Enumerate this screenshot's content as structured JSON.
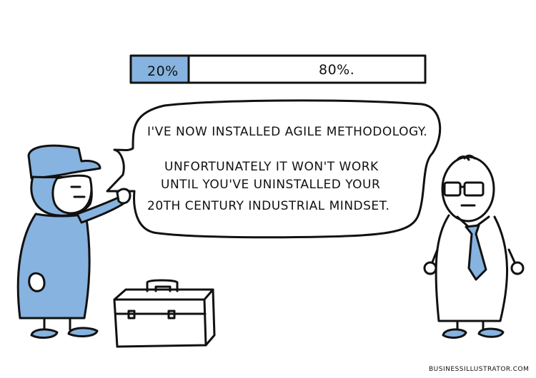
{
  "progress": {
    "left_label": "20%",
    "right_label": "80%.",
    "fill_percent": 20,
    "fill_color": "#86b3e0"
  },
  "speech": {
    "line1": "I'VE NOW INSTALLED AGILE METHODOLOGY.",
    "line2": "UNFORTUNATELY IT WON'T WORK",
    "line3": "UNTIL YOU'VE UNINSTALLED YOUR",
    "line4": "20TH CENTURY INDUSTRIAL MINDSET."
  },
  "credit": "BUSINESSILLUSTRATOR.COM",
  "colors": {
    "accent": "#86b3e0",
    "ink": "#111111"
  },
  "icons": [
    "technician-figure",
    "manager-figure",
    "toolbox-icon",
    "speech-bubble"
  ]
}
